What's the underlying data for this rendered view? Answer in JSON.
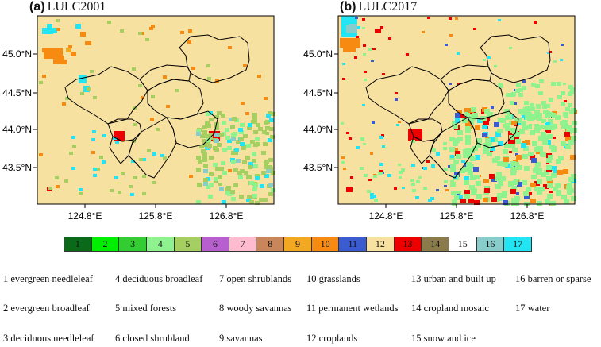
{
  "panels": [
    {
      "letter": "(a)",
      "name": "LULC2001",
      "lat_labels": [
        "45.0°N",
        "44.5°N",
        "44.0°N",
        "43.5°N"
      ],
      "lon_labels": [
        "124.8°E",
        "125.8°E",
        "126.8°E"
      ]
    },
    {
      "letter": "(b)",
      "name": "LULC2017",
      "lat_labels": [
        "45.0°N",
        "44.5°N",
        "44.0°N",
        "43.5°N"
      ],
      "lon_labels": [
        "124.8°E",
        "125.8°E",
        "126.8°E"
      ]
    }
  ],
  "colors": {
    "1": "#0a6a1a",
    "2": "#00ee00",
    "3": "#33cc33",
    "4": "#8ef28e",
    "5": "#a6cf62",
    "6": "#b85fd0",
    "7": "#ffbcd0",
    "8": "#c8865a",
    "9": "#f2a820",
    "10": "#f78a10",
    "11": "#3a5cd0",
    "12": "#f7e1a1",
    "13": "#ee0000",
    "14": "#8b7a4a",
    "15": "#ffffff",
    "16": "#88cccc",
    "17": "#22e4f2"
  },
  "legend_numbers": [
    "1",
    "2",
    "3",
    "4",
    "5",
    "6",
    "7",
    "8",
    "9",
    "10",
    "11",
    "12",
    "13",
    "14",
    "15",
    "16",
    "17"
  ],
  "classes": [
    "1 evergreen needleleaf",
    "2 evergreen broadleaf",
    "3 deciduous needleleaf",
    "4 deciduous broadleaf",
    "5 mixed forests",
    "6 closed shrubland",
    "7 open shrublands",
    "8 woody savannas",
    "9 savannas",
    "10 grasslands",
    "11 permanent wetlands",
    "12 croplands",
    "13 urban and built up",
    "14 cropland mosaic",
    "15 snow and ice",
    "16 barren or sparse",
    "17 water"
  ]
}
